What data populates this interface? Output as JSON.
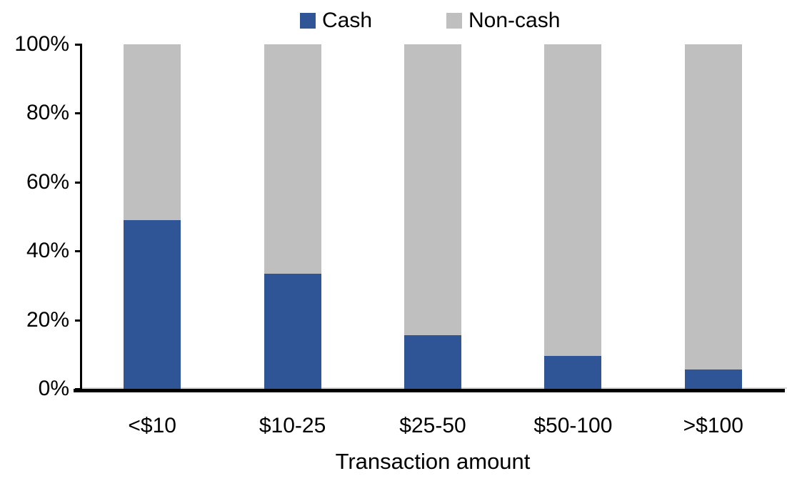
{
  "chart_data": {
    "type": "bar",
    "stacked": true,
    "normalized_to_100_percent": true,
    "title": "",
    "xlabel": "Transaction amount",
    "ylabel": "",
    "categories": [
      "<$10",
      "$10-25",
      "$25-50",
      "$50-100",
      ">$100"
    ],
    "series": [
      {
        "name": "Cash",
        "color": "#2F5597",
        "values": [
          49,
          33.5,
          15.5,
          9.5,
          5.5
        ]
      },
      {
        "name": "Non-cash",
        "color": "#BFBFBF",
        "values": [
          51,
          66.5,
          84.5,
          90.5,
          94.5
        ]
      }
    ],
    "y_axis": {
      "min": 0,
      "max": 100,
      "tick_step": 20,
      "tick_labels": [
        "0%",
        "20%",
        "40%",
        "60%",
        "80%",
        "100%"
      ],
      "format": "percent"
    },
    "legend_position": "top",
    "grid": false,
    "axis_color": "#000000",
    "text_color": "#000000"
  }
}
